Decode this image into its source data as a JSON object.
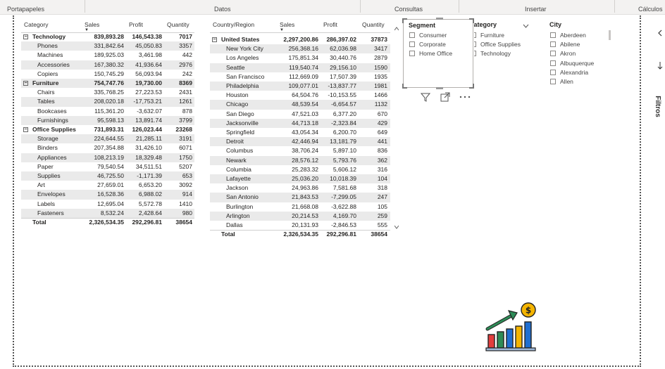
{
  "ribbon": {
    "groups": [
      "Portapapeles",
      "Datos",
      "Consultas",
      "Insertar",
      "Cálculos"
    ]
  },
  "pane": {
    "label": "Filtros"
  },
  "matrix1": {
    "headers": [
      "Category",
      "Sales",
      "Profit",
      "Quantity"
    ],
    "rows": [
      {
        "label": "Technology",
        "sales": "839,893.28",
        "profit": "146,543.38",
        "qty": "7017",
        "level": 0
      },
      {
        "label": "Phones",
        "sales": "331,842.64",
        "profit": "45,050.83",
        "qty": "3357",
        "level": 1
      },
      {
        "label": "Machines",
        "sales": "189,925.03",
        "profit": "3,461.98",
        "qty": "442",
        "level": 1
      },
      {
        "label": "Accessories",
        "sales": "167,380.32",
        "profit": "41,936.64",
        "qty": "2976",
        "level": 1
      },
      {
        "label": "Copiers",
        "sales": "150,745.29",
        "profit": "56,093.94",
        "qty": "242",
        "level": 1
      },
      {
        "label": "Furniture",
        "sales": "754,747.76",
        "profit": "19,730.00",
        "qty": "8369",
        "level": 0
      },
      {
        "label": "Chairs",
        "sales": "335,768.25",
        "profit": "27,223.53",
        "qty": "2431",
        "level": 1
      },
      {
        "label": "Tables",
        "sales": "208,020.18",
        "profit": "-17,753.21",
        "qty": "1261",
        "level": 1
      },
      {
        "label": "Bookcases",
        "sales": "115,361.20",
        "profit": "-3,632.07",
        "qty": "878",
        "level": 1
      },
      {
        "label": "Furnishings",
        "sales": "95,598.13",
        "profit": "13,891.74",
        "qty": "3799",
        "level": 1
      },
      {
        "label": "Office Supplies",
        "sales": "731,893.31",
        "profit": "126,023.44",
        "qty": "23268",
        "level": 0
      },
      {
        "label": "Storage",
        "sales": "224,644.55",
        "profit": "21,285.11",
        "qty": "3191",
        "level": 1
      },
      {
        "label": "Binders",
        "sales": "207,354.88",
        "profit": "31,426.10",
        "qty": "6071",
        "level": 1
      },
      {
        "label": "Appliances",
        "sales": "108,213.19",
        "profit": "18,329.48",
        "qty": "1750",
        "level": 1
      },
      {
        "label": "Paper",
        "sales": "79,540.54",
        "profit": "34,511.51",
        "qty": "5207",
        "level": 1
      },
      {
        "label": "Supplies",
        "sales": "46,725.50",
        "profit": "-1,171.39",
        "qty": "653",
        "level": 1
      },
      {
        "label": "Art",
        "sales": "27,659.01",
        "profit": "6,653.20",
        "qty": "3092",
        "level": 1
      },
      {
        "label": "Envelopes",
        "sales": "16,528.36",
        "profit": "6,988.02",
        "qty": "914",
        "level": 1
      },
      {
        "label": "Labels",
        "sales": "12,695.04",
        "profit": "5,572.78",
        "qty": "1410",
        "level": 1
      },
      {
        "label": "Fasteners",
        "sales": "8,532.24",
        "profit": "2,428.64",
        "qty": "980",
        "level": 1
      }
    ],
    "total": {
      "label": "Total",
      "sales": "2,326,534.35",
      "profit": "292,296.81",
      "qty": "38654"
    }
  },
  "matrix2": {
    "headers": [
      "Country/Region",
      "Sales",
      "Profit",
      "Quantity"
    ],
    "rows": [
      {
        "label": "United States",
        "sales": "2,297,200.86",
        "profit": "286,397.02",
        "qty": "37873",
        "level": 0
      },
      {
        "label": "New York City",
        "sales": "256,368.16",
        "profit": "62,036.98",
        "qty": "3417",
        "level": 1
      },
      {
        "label": "Los Angeles",
        "sales": "175,851.34",
        "profit": "30,440.76",
        "qty": "2879",
        "level": 1
      },
      {
        "label": "Seattle",
        "sales": "119,540.74",
        "profit": "29,156.10",
        "qty": "1590",
        "level": 1
      },
      {
        "label": "San Francisco",
        "sales": "112,669.09",
        "profit": "17,507.39",
        "qty": "1935",
        "level": 1
      },
      {
        "label": "Philadelphia",
        "sales": "109,077.01",
        "profit": "-13,837.77",
        "qty": "1981",
        "level": 1
      },
      {
        "label": "Houston",
        "sales": "64,504.76",
        "profit": "-10,153.55",
        "qty": "1466",
        "level": 1
      },
      {
        "label": "Chicago",
        "sales": "48,539.54",
        "profit": "-6,654.57",
        "qty": "1132",
        "level": 1
      },
      {
        "label": "San Diego",
        "sales": "47,521.03",
        "profit": "6,377.20",
        "qty": "670",
        "level": 1
      },
      {
        "label": "Jacksonville",
        "sales": "44,713.18",
        "profit": "-2,323.84",
        "qty": "429",
        "level": 1
      },
      {
        "label": "Springfield",
        "sales": "43,054.34",
        "profit": "6,200.70",
        "qty": "649",
        "level": 1
      },
      {
        "label": "Detroit",
        "sales": "42,446.94",
        "profit": "13,181.79",
        "qty": "441",
        "level": 1
      },
      {
        "label": "Columbus",
        "sales": "38,706.24",
        "profit": "5,897.10",
        "qty": "836",
        "level": 1
      },
      {
        "label": "Newark",
        "sales": "28,576.12",
        "profit": "5,793.76",
        "qty": "362",
        "level": 1
      },
      {
        "label": "Columbia",
        "sales": "25,283.32",
        "profit": "5,606.12",
        "qty": "316",
        "level": 1
      },
      {
        "label": "Lafayette",
        "sales": "25,036.20",
        "profit": "10,018.39",
        "qty": "104",
        "level": 1
      },
      {
        "label": "Jackson",
        "sales": "24,963.86",
        "profit": "7,581.68",
        "qty": "318",
        "level": 1
      },
      {
        "label": "San Antonio",
        "sales": "21,843.53",
        "profit": "-7,299.05",
        "qty": "247",
        "level": 1
      },
      {
        "label": "Burlington",
        "sales": "21,668.08",
        "profit": "-3,622.88",
        "qty": "105",
        "level": 1
      },
      {
        "label": "Arlington",
        "sales": "20,214.53",
        "profit": "4,169.70",
        "qty": "259",
        "level": 1
      },
      {
        "label": "Dallas",
        "sales": "20,131.93",
        "profit": "-2,846.53",
        "qty": "555",
        "level": 1
      }
    ],
    "total": {
      "label": "Total",
      "sales": "2,326,534.35",
      "profit": "292,296.81",
      "qty": "38654"
    }
  },
  "slicer_segment": {
    "title": "Segment",
    "items": [
      "Consumer",
      "Corporate",
      "Home Office"
    ]
  },
  "slicer_category": {
    "title": "Category",
    "items": [
      "Furniture",
      "Office Supplies",
      "Technology"
    ]
  },
  "slicer_city": {
    "title": "City",
    "items": [
      "Aberdeen",
      "Abilene",
      "Akron",
      "Albuquerque",
      "Alexandria",
      "Allen"
    ]
  },
  "colors": {
    "accent": "#118dff",
    "logo_green": "#2e8b57",
    "logo_red": "#e23d3d",
    "logo_blue": "#1f6fd1",
    "logo_yellow": "#f4b400"
  }
}
